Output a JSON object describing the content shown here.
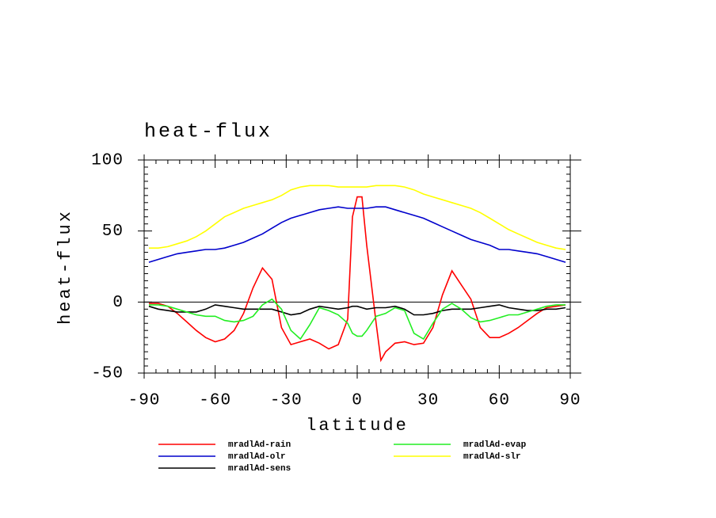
{
  "chart_data": {
    "type": "line",
    "title": "heat-flux",
    "x_label": "latitude",
    "y_label": "heat-flux",
    "x": [
      -88,
      -84,
      -80,
      -76,
      -72,
      -68,
      -64,
      -60,
      -56,
      -52,
      -48,
      -44,
      -40,
      -36,
      -32,
      -28,
      -24,
      -20,
      -16,
      -12,
      -8,
      -4,
      -2,
      0,
      2,
      4,
      8,
      10,
      12,
      16,
      20,
      24,
      28,
      32,
      36,
      40,
      44,
      48,
      52,
      56,
      60,
      64,
      68,
      72,
      76,
      80,
      84,
      88
    ],
    "series": [
      {
        "name": "mradlAd-rain",
        "color": "#ff0000",
        "values": [
          -1,
          -1,
          -3,
          -8,
          -14,
          -20,
          -25,
          -28,
          -26,
          -20,
          -8,
          10,
          24,
          16,
          -18,
          -30,
          -28,
          -26,
          -29,
          -33,
          -30,
          -12,
          60,
          74,
          74,
          40,
          -15,
          -41,
          -35,
          -29,
          -28,
          -30,
          -29,
          -18,
          5,
          22,
          12,
          2,
          -18,
          -25,
          -25,
          -22,
          -18,
          -13,
          -8,
          -4,
          -3,
          -2
        ]
      },
      {
        "name": "mradlAd-olr",
        "color": "#0000cc",
        "values": [
          28,
          30,
          32,
          34,
          35,
          36,
          37,
          37,
          38,
          40,
          42,
          45,
          48,
          52,
          56,
          59,
          61,
          63,
          65,
          66,
          67,
          66,
          66,
          66,
          66,
          66,
          67,
          67,
          67,
          65,
          63,
          61,
          59,
          56,
          53,
          50,
          47,
          44,
          42,
          40,
          37,
          37,
          36,
          35,
          34,
          32,
          30,
          28
        ]
      },
      {
        "name": "mradlAd-sens",
        "color": "#000000",
        "values": [
          -3,
          -5,
          -6,
          -7,
          -7,
          -7,
          -5,
          -2,
          -3,
          -4,
          -5,
          -5,
          -5,
          -5,
          -7,
          -9,
          -8,
          -5,
          -3,
          -4,
          -5,
          -4,
          -3,
          -3,
          -4,
          -5,
          -4,
          -4,
          -4,
          -3,
          -5,
          -9,
          -9,
          -8,
          -6,
          -5,
          -5,
          -5,
          -4,
          -3,
          -2,
          -4,
          -5,
          -6,
          -6,
          -5,
          -5,
          -4
        ]
      },
      {
        "name": "mradlAd-evap",
        "color": "#22ee22",
        "values": [
          -2,
          -2,
          -3,
          -5,
          -7,
          -9,
          -10,
          -10,
          -13,
          -14,
          -13,
          -10,
          -2,
          2,
          -5,
          -20,
          -26,
          -16,
          -4,
          -6,
          -9,
          -15,
          -22,
          -24,
          -24,
          -20,
          -10,
          -9,
          -8,
          -4,
          -6,
          -22,
          -26,
          -15,
          -5,
          -1,
          -5,
          -11,
          -14,
          -13,
          -11,
          -9,
          -9,
          -7,
          -5,
          -3,
          -2,
          -2
        ]
      },
      {
        "name": "mradlAd-slr",
        "color": "#ffff00",
        "values": [
          38,
          38,
          39,
          41,
          43,
          46,
          50,
          55,
          60,
          63,
          66,
          68,
          70,
          72,
          75,
          79,
          81,
          82,
          82,
          82,
          81,
          81,
          81,
          81,
          81,
          81,
          82,
          82,
          82,
          82,
          81,
          79,
          76,
          74,
          72,
          70,
          68,
          66,
          63,
          59,
          55,
          51,
          48,
          45,
          42,
          40,
          38,
          37
        ]
      }
    ],
    "xlim": [
      -90,
      90
    ],
    "ylim": [
      -50,
      100
    ],
    "xticks": [
      -90,
      -60,
      -30,
      0,
      30,
      60,
      90
    ],
    "yticks": [
      -50,
      0,
      50,
      100
    ]
  }
}
